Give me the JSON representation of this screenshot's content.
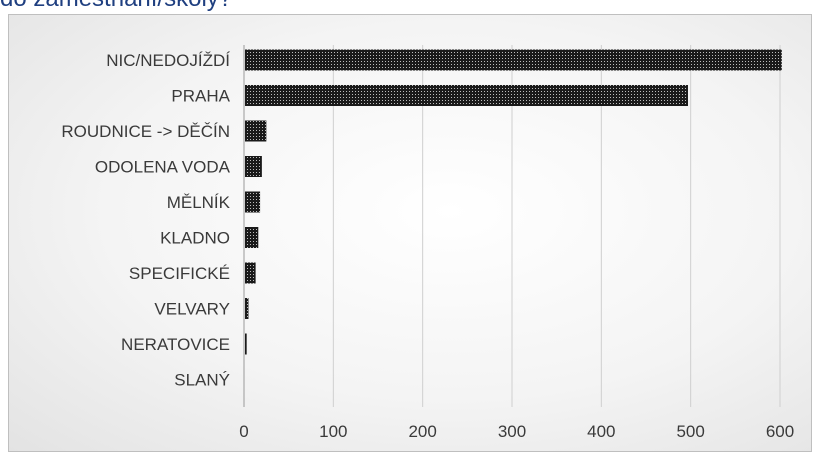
{
  "header": {
    "clipped_title": "do zaměstnání/školy?"
  },
  "chart_data": {
    "type": "bar",
    "orientation": "horizontal",
    "categories": [
      "NIC/NEDOJÍŽDÍ",
      "PRAHA",
      "ROUDNICE -> DĚČÍN",
      "ODOLENA VODA",
      "MĚLNÍK",
      "KLADNO",
      "SPECIFICKÉ",
      "VELVARY",
      "NERATOVICE",
      "SLANÝ"
    ],
    "values": [
      602,
      497,
      25,
      20,
      18,
      16,
      13,
      5,
      3,
      0
    ],
    "xlim": [
      0,
      600
    ],
    "xticks": [
      "0",
      "100",
      "200",
      "300",
      "400",
      "500",
      "600"
    ],
    "grid": "vertical",
    "bar_fill": "dark-dotted-pattern",
    "colors": {
      "bar": "#1a1a1a",
      "bar_dots": "#bdbdbd",
      "grid": "#cfcfcf",
      "axis": "#9a9a9a"
    }
  }
}
